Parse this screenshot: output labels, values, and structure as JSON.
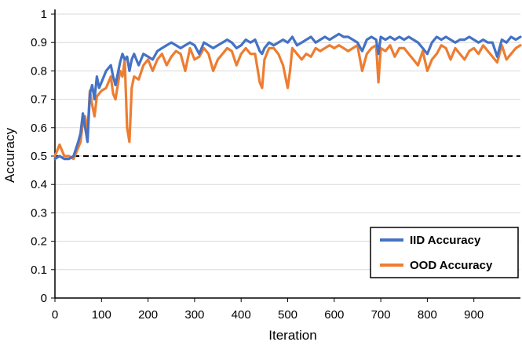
{
  "chart_data": {
    "type": "line",
    "title": "",
    "xlabel": "Iteration",
    "ylabel": "Accuracy",
    "xlim": [
      0,
      1000
    ],
    "ylim": [
      0,
      1
    ],
    "x_ticks": [
      0,
      100,
      200,
      300,
      400,
      500,
      600,
      700,
      800,
      900
    ],
    "y_ticks": [
      0,
      0.1,
      0.2,
      0.3,
      0.4,
      0.5,
      0.6,
      0.7,
      0.8,
      0.9,
      1
    ],
    "grid": "horizontal",
    "legend_position": "bottom-right",
    "reference_line": {
      "y": 0.5,
      "style": "dashed",
      "color": "#000000"
    },
    "x": [
      0,
      10,
      20,
      30,
      40,
      50,
      55,
      60,
      65,
      70,
      75,
      80,
      85,
      90,
      95,
      100,
      110,
      120,
      125,
      130,
      140,
      145,
      150,
      155,
      160,
      165,
      170,
      180,
      190,
      200,
      210,
      220,
      230,
      240,
      250,
      260,
      270,
      280,
      290,
      300,
      310,
      320,
      330,
      340,
      350,
      360,
      370,
      380,
      390,
      400,
      410,
      420,
      430,
      440,
      445,
      450,
      460,
      470,
      480,
      490,
      500,
      505,
      510,
      520,
      530,
      540,
      550,
      560,
      570,
      580,
      590,
      600,
      610,
      620,
      630,
      640,
      650,
      660,
      670,
      680,
      690,
      695,
      700,
      710,
      720,
      730,
      740,
      750,
      760,
      770,
      780,
      790,
      800,
      810,
      820,
      830,
      840,
      850,
      860,
      870,
      880,
      890,
      900,
      910,
      920,
      930,
      940,
      950,
      960,
      970,
      980,
      990,
      1000
    ],
    "series": [
      {
        "name": "IID Accuracy",
        "color": "#4472C4",
        "values": [
          0.49,
          0.5,
          0.49,
          0.49,
          0.5,
          0.55,
          0.58,
          0.65,
          0.6,
          0.55,
          0.72,
          0.75,
          0.7,
          0.78,
          0.74,
          0.76,
          0.8,
          0.82,
          0.78,
          0.75,
          0.83,
          0.86,
          0.84,
          0.85,
          0.8,
          0.84,
          0.86,
          0.82,
          0.86,
          0.85,
          0.84,
          0.87,
          0.88,
          0.89,
          0.9,
          0.89,
          0.88,
          0.89,
          0.9,
          0.89,
          0.86,
          0.9,
          0.89,
          0.88,
          0.89,
          0.9,
          0.91,
          0.9,
          0.88,
          0.89,
          0.91,
          0.9,
          0.91,
          0.87,
          0.86,
          0.88,
          0.9,
          0.89,
          0.9,
          0.91,
          0.9,
          0.91,
          0.92,
          0.89,
          0.9,
          0.91,
          0.92,
          0.9,
          0.91,
          0.92,
          0.91,
          0.92,
          0.93,
          0.92,
          0.92,
          0.91,
          0.9,
          0.87,
          0.91,
          0.92,
          0.91,
          0.86,
          0.92,
          0.91,
          0.92,
          0.91,
          0.92,
          0.91,
          0.92,
          0.91,
          0.9,
          0.88,
          0.86,
          0.9,
          0.92,
          0.91,
          0.92,
          0.91,
          0.9,
          0.91,
          0.91,
          0.92,
          0.91,
          0.9,
          0.91,
          0.9,
          0.9,
          0.85,
          0.91,
          0.9,
          0.92,
          0.91,
          0.92
        ]
      },
      {
        "name": "OOD Accuracy",
        "color": "#ED7D31",
        "values": [
          0.5,
          0.54,
          0.5,
          0.5,
          0.49,
          0.53,
          0.55,
          0.62,
          0.64,
          0.58,
          0.73,
          0.68,
          0.64,
          0.71,
          0.72,
          0.73,
          0.74,
          0.78,
          0.72,
          0.7,
          0.8,
          0.78,
          0.84,
          0.6,
          0.55,
          0.74,
          0.78,
          0.77,
          0.82,
          0.84,
          0.8,
          0.84,
          0.86,
          0.82,
          0.85,
          0.87,
          0.86,
          0.8,
          0.88,
          0.84,
          0.85,
          0.88,
          0.86,
          0.8,
          0.84,
          0.86,
          0.88,
          0.87,
          0.82,
          0.86,
          0.88,
          0.86,
          0.86,
          0.76,
          0.74,
          0.84,
          0.88,
          0.88,
          0.86,
          0.82,
          0.74,
          0.8,
          0.88,
          0.86,
          0.84,
          0.86,
          0.85,
          0.88,
          0.87,
          0.88,
          0.89,
          0.88,
          0.89,
          0.88,
          0.87,
          0.88,
          0.89,
          0.8,
          0.86,
          0.88,
          0.89,
          0.76,
          0.88,
          0.87,
          0.89,
          0.85,
          0.88,
          0.88,
          0.86,
          0.84,
          0.82,
          0.87,
          0.8,
          0.84,
          0.86,
          0.89,
          0.88,
          0.84,
          0.88,
          0.86,
          0.84,
          0.87,
          0.88,
          0.86,
          0.89,
          0.87,
          0.85,
          0.83,
          0.89,
          0.84,
          0.86,
          0.88,
          0.89
        ]
      }
    ]
  }
}
